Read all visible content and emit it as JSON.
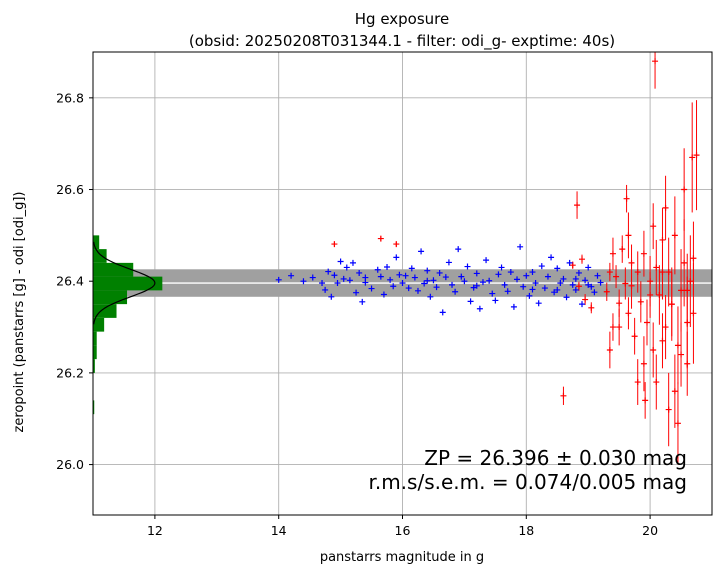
{
  "chart_data": {
    "type": "scatter",
    "title_line1": "Hg exposure",
    "title_line2": "(obsid: 20250208T031344.1 - filter: odi_g- exptime: 40s)",
    "xlabel": "panstarrs magnitude in g",
    "ylabel": "zeropoint (panstarrs [g] - odi [odi_g])",
    "xlim": [
      11.0,
      21.0
    ],
    "ylim": [
      25.89,
      26.9
    ],
    "xticks": [
      12,
      14,
      16,
      18,
      20
    ],
    "yticks": [
      26.0,
      26.2,
      26.4,
      26.6,
      26.8
    ],
    "grid": true,
    "zp_value": 26.396,
    "zp_error": 0.03,
    "band": [
      26.366,
      26.426
    ],
    "zp_text": "ZP = 26.396 ± 0.030 mag",
    "rms_text": "r.m.s/s.e.m. = 0.074/0.005 mag",
    "colors": {
      "used": "#0000ff",
      "rejected": "#ff0000",
      "histogram": "#008000",
      "band": "#a0a0a0",
      "zp_line": "#ffffff",
      "gaussian": "#000000",
      "grid": "#b0b0b0"
    },
    "histogram": {
      "bin_edges": [
        26.11,
        26.14,
        26.17,
        26.2,
        26.23,
        26.26,
        26.29,
        26.32,
        26.35,
        26.38,
        26.41,
        26.44,
        26.47,
        26.5
      ],
      "widths_mag": [
        0.02,
        0.0,
        0.0,
        0.03,
        0.06,
        0.06,
        0.18,
        0.38,
        0.55,
        1.12,
        0.65,
        0.22,
        0.1
      ]
    },
    "gaussian_peak_mag": 1.0,
    "series": [
      {
        "values": [
          [
            14.0,
            26.403
          ],
          [
            14.2,
            26.412
          ],
          [
            14.4,
            26.4
          ],
          [
            14.55,
            26.408
          ],
          [
            14.7,
            26.396
          ],
          [
            14.75,
            26.381
          ],
          [
            14.8,
            26.421
          ],
          [
            14.85,
            26.366
          ],
          [
            14.9,
            26.413
          ],
          [
            14.95,
            26.396
          ],
          [
            15.0,
            26.443
          ],
          [
            15.05,
            26.405
          ],
          [
            15.1,
            26.43
          ],
          [
            15.15,
            26.402
          ],
          [
            15.2,
            26.44
          ],
          [
            15.25,
            26.375
          ],
          [
            15.3,
            26.418
          ],
          [
            15.35,
            26.355
          ],
          [
            15.4,
            26.397
          ],
          [
            15.5,
            26.384
          ],
          [
            15.6,
            26.425
          ],
          [
            15.65,
            26.41
          ],
          [
            15.7,
            26.371
          ],
          [
            15.75,
            26.431
          ],
          [
            15.8,
            26.403
          ],
          [
            15.85,
            26.389
          ],
          [
            15.9,
            26.452
          ],
          [
            15.95,
            26.414
          ],
          [
            16.0,
            26.396
          ],
          [
            16.05,
            26.412
          ],
          [
            16.1,
            26.385
          ],
          [
            16.15,
            26.428
          ],
          [
            16.2,
            26.408
          ],
          [
            16.25,
            26.379
          ],
          [
            16.3,
            26.465
          ],
          [
            16.35,
            26.395
          ],
          [
            16.4,
            26.423
          ],
          [
            16.45,
            26.366
          ],
          [
            16.5,
            26.402
          ],
          [
            16.55,
            26.387
          ],
          [
            16.6,
            26.418
          ],
          [
            16.65,
            26.332
          ],
          [
            16.7,
            26.409
          ],
          [
            16.75,
            26.441
          ],
          [
            16.8,
            26.392
          ],
          [
            16.85,
            26.377
          ],
          [
            16.9,
            26.47
          ],
          [
            16.95,
            26.41
          ],
          [
            17.0,
            26.4
          ],
          [
            17.05,
            26.432
          ],
          [
            17.1,
            26.356
          ],
          [
            17.15,
            26.386
          ],
          [
            17.2,
            26.417
          ],
          [
            17.25,
            26.34
          ],
          [
            17.3,
            26.398
          ],
          [
            17.35,
            26.446
          ],
          [
            17.4,
            26.401
          ],
          [
            17.45,
            26.373
          ],
          [
            17.5,
            26.358
          ],
          [
            17.55,
            26.415
          ],
          [
            17.6,
            26.43
          ],
          [
            17.65,
            26.392
          ],
          [
            17.7,
            26.378
          ],
          [
            17.75,
            26.42
          ],
          [
            17.8,
            26.344
          ],
          [
            17.85,
            26.404
          ],
          [
            17.9,
            26.475
          ],
          [
            17.95,
            26.388
          ],
          [
            18.0,
            26.412
          ],
          [
            18.05,
            26.368
          ],
          [
            18.1,
            26.42
          ],
          [
            18.15,
            26.396
          ],
          [
            18.2,
            26.352
          ],
          [
            18.25,
            26.433
          ],
          [
            18.3,
            26.385
          ],
          [
            18.35,
            26.41
          ],
          [
            18.4,
            26.452
          ],
          [
            18.45,
            26.376
          ],
          [
            18.5,
            26.428
          ],
          [
            18.55,
            26.396
          ],
          [
            18.6,
            26.405
          ],
          [
            18.65,
            26.365
          ],
          [
            18.7,
            26.44
          ],
          [
            18.75,
            26.392
          ],
          [
            18.8,
            26.381
          ],
          [
            18.85,
            26.418
          ],
          [
            18.9,
            26.35
          ],
          [
            18.95,
            26.402
          ],
          [
            19.0,
            26.43
          ],
          [
            19.05,
            26.388
          ],
          [
            19.1,
            26.376
          ],
          [
            19.15,
            26.412
          ],
          [
            19.2,
            26.397
          ],
          [
            18.1,
            26.382
          ],
          [
            17.2,
            26.39
          ],
          [
            16.4,
            26.401
          ],
          [
            15.4,
            26.408
          ],
          [
            18.8,
            26.405
          ],
          [
            19.0,
            26.392
          ],
          [
            18.5,
            26.381
          ]
        ]
      },
      {
        "values": [
          [
            14.9,
            26.481
          ],
          [
            15.65,
            26.493
          ],
          [
            15.9,
            26.481
          ],
          [
            18.75,
            26.435
          ],
          [
            18.85,
            26.389
          ],
          [
            18.9,
            26.448
          ],
          [
            18.95,
            26.36
          ],
          [
            19.05,
            26.342
          ],
          [
            19.3,
            26.377
          ],
          [
            19.35,
            26.42
          ],
          [
            19.4,
            26.3
          ],
          [
            19.45,
            26.41
          ],
          [
            19.5,
            26.352
          ],
          [
            19.55,
            26.47
          ],
          [
            19.6,
            26.395
          ],
          [
            19.65,
            26.33
          ],
          [
            19.7,
            26.44
          ],
          [
            19.75,
            26.28
          ],
          [
            19.8,
            26.42
          ],
          [
            19.85,
            26.355
          ],
          [
            19.9,
            26.46
          ],
          [
            19.95,
            26.31
          ],
          [
            20.0,
            26.4
          ],
          [
            20.05,
            26.25
          ],
          [
            20.1,
            26.43
          ],
          [
            20.15,
            26.37
          ],
          [
            20.2,
            26.49
          ],
          [
            20.25,
            26.3
          ],
          [
            20.3,
            26.42
          ],
          [
            20.35,
            26.35
          ],
          [
            20.4,
            26.5
          ],
          [
            20.45,
            26.26
          ],
          [
            20.5,
            26.38
          ],
          [
            20.55,
            26.44
          ],
          [
            20.6,
            26.31
          ],
          [
            20.65,
            26.4
          ],
          [
            20.7,
            26.33
          ],
          [
            19.35,
            26.25
          ],
          [
            19.65,
            26.5
          ],
          [
            19.9,
            26.22
          ],
          [
            20.1,
            26.18
          ],
          [
            20.25,
            26.56
          ],
          [
            20.4,
            26.16
          ],
          [
            20.55,
            26.6
          ],
          [
            20.6,
            26.22
          ],
          [
            20.3,
            26.12
          ],
          [
            20.45,
            26.09
          ],
          [
            20.75,
            26.675
          ],
          [
            20.68,
            26.67
          ],
          [
            20.08,
            26.88
          ],
          [
            19.62,
            26.58
          ],
          [
            18.6,
            26.15
          ],
          [
            19.92,
            26.14
          ],
          [
            20.05,
            26.52
          ],
          [
            20.2,
            26.27
          ],
          [
            19.5,
            26.3
          ],
          [
            19.8,
            26.18
          ],
          [
            20.5,
            26.24
          ],
          [
            20.7,
            26.45
          ],
          [
            19.4,
            26.46
          ],
          [
            20.0,
            26.37
          ],
          [
            20.2,
            26.42
          ],
          [
            20.35,
            26.35
          ],
          [
            19.7,
            26.39
          ],
          [
            20.6,
            26.38
          ],
          [
            18.82,
            26.566
          ]
        ],
        "yerr_mag": [
          0.005,
          0.005,
          0.005,
          0.008,
          0.01,
          0.01,
          0.012,
          0.012,
          0.02,
          0.02,
          0.03,
          0.025,
          0.03,
          0.03,
          0.035,
          0.035,
          0.04,
          0.04,
          0.045,
          0.045,
          0.05,
          0.05,
          0.055,
          0.06,
          0.06,
          0.065,
          0.07,
          0.07,
          0.075,
          0.08,
          0.085,
          0.085,
          0.09,
          0.095,
          0.1,
          0.1,
          0.11,
          0.04,
          0.05,
          0.06,
          0.06,
          0.07,
          0.08,
          0.09,
          0.07,
          0.08,
          0.09,
          0.12,
          0.12,
          0.06,
          0.03,
          0.02,
          0.04,
          0.05,
          0.06,
          0.04,
          0.05,
          0.07,
          0.08,
          0.035,
          0.05,
          0.06,
          0.07,
          0.05,
          0.08,
          0.03
        ]
      }
    ]
  }
}
